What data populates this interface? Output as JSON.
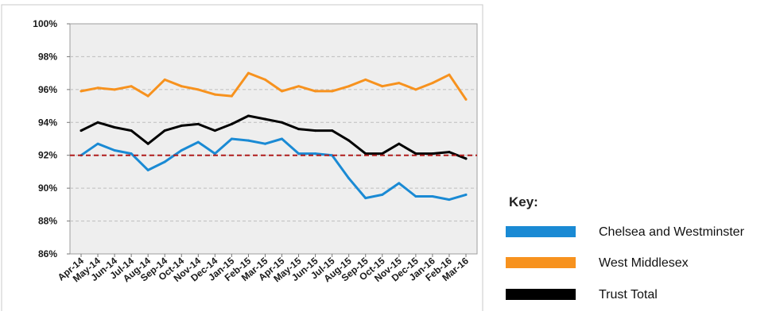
{
  "chart_data": {
    "type": "line",
    "categories": [
      "Apr-14",
      "May-14",
      "Jun-14",
      "Jul-14",
      "Aug-14",
      "Sep-14",
      "Oct-14",
      "Nov-14",
      "Dec-14",
      "Jan-15",
      "Feb-15",
      "Mar-15",
      "Apr-15",
      "May-15",
      "Jun-15",
      "Jul-15",
      "Aug-15",
      "Sep-15",
      "Oct-15",
      "Nov-15",
      "Dec-15",
      "Jan-16",
      "Feb-16",
      "Mar-16"
    ],
    "series": [
      {
        "name": "Chelsea and Westminster",
        "color": "#1a8ad4",
        "values": [
          92.0,
          92.7,
          92.3,
          92.1,
          91.1,
          91.6,
          92.3,
          92.8,
          92.1,
          93.0,
          92.9,
          92.7,
          93.0,
          92.1,
          92.1,
          92.0,
          90.6,
          89.4,
          89.6,
          90.3,
          89.5,
          89.5,
          89.3,
          89.6
        ]
      },
      {
        "name": "West Middlesex",
        "color": "#f7921e",
        "values": [
          95.9,
          96.1,
          96.0,
          96.2,
          95.6,
          96.6,
          96.2,
          96.0,
          95.7,
          95.6,
          97.0,
          96.6,
          95.9,
          96.2,
          95.9,
          95.9,
          96.2,
          96.6,
          96.2,
          96.4,
          96.0,
          96.4,
          96.9,
          95.4
        ]
      },
      {
        "name": "Trust Total",
        "color": "#000000",
        "values": [
          93.5,
          94.0,
          93.7,
          93.5,
          92.7,
          93.5,
          93.8,
          93.9,
          93.5,
          93.9,
          94.4,
          94.2,
          94.0,
          93.6,
          93.5,
          93.5,
          92.9,
          92.1,
          92.1,
          92.7,
          92.1,
          92.1,
          92.2,
          91.8
        ]
      }
    ],
    "yticks": [
      "86%",
      "88%",
      "90%",
      "92%",
      "94%",
      "96%",
      "98%",
      "100%"
    ],
    "ylim": [
      86,
      100
    ],
    "target_line": {
      "value": 92,
      "color": "#b01c1c",
      "style": "dashed"
    },
    "grid": true,
    "grid_color": "#bdbdbd",
    "plot_background": "#eeeeee",
    "legend": {
      "title": "Key:",
      "placement": "right",
      "entries": [
        "Chelsea and Westminster",
        "West Middlesex",
        "Trust Total"
      ]
    }
  }
}
